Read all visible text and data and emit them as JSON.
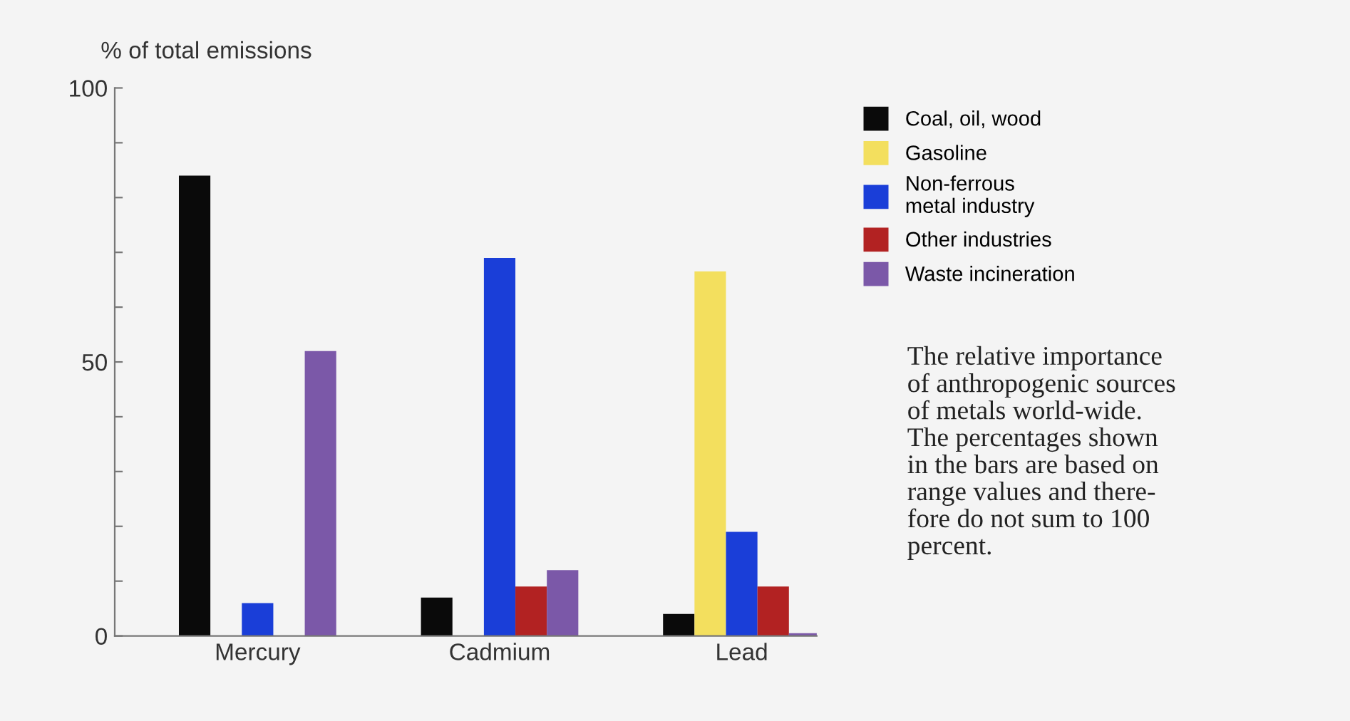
{
  "chart_data": {
    "type": "bar",
    "ylabel": "% of total emissions",
    "categories": [
      "Mercury",
      "Cadmium",
      "Lead"
    ],
    "series": [
      {
        "name": "Coal, oil, wood",
        "color": "#0a0a0a",
        "values": [
          84,
          7,
          4
        ]
      },
      {
        "name": "Gasoline",
        "color": "#f3df5e",
        "values": [
          null,
          null,
          66.5
        ]
      },
      {
        "name": "Non-ferrous\nmetal industry",
        "color": "#1a3ed8",
        "values": [
          6,
          69,
          19
        ]
      },
      {
        "name": "Other industries",
        "color": "#b22222",
        "values": [
          null,
          9,
          9
        ]
      },
      {
        "name": "Waste incineration",
        "color": "#7b58a8",
        "values": [
          52,
          12,
          0.5
        ]
      }
    ],
    "ylim": [
      0,
      100
    ],
    "yticks": [
      0,
      {
        "value": 10,
        "label": null
      },
      {
        "value": 20,
        "label": null
      },
      {
        "value": 30,
        "label": null
      },
      {
        "value": 40,
        "label": null
      },
      50,
      {
        "value": 60,
        "label": null
      },
      {
        "value": 70,
        "label": null
      },
      {
        "value": 80,
        "label": null
      },
      {
        "value": 90,
        "label": null
      },
      100
    ],
    "legend": "right",
    "grid": false,
    "annotations": [
      "The relative importance\nof anthropogenic sources\nof metals world-wide.\nThe percentages shown\nin the bars are based on\nrange values and there-\nfore do not sum to 100\npercent."
    ]
  }
}
